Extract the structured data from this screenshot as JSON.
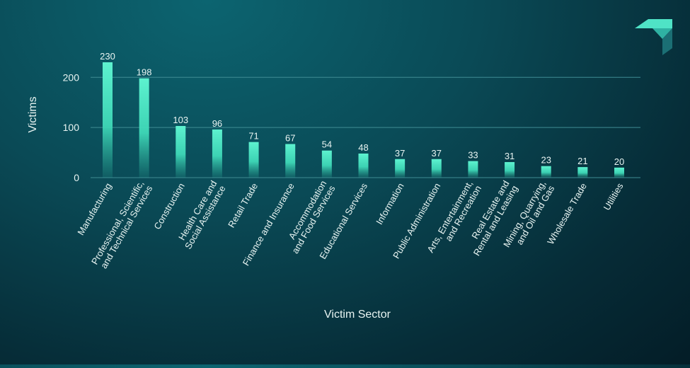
{
  "chart_data": {
    "type": "bar",
    "title": "",
    "xlabel": "Victim Sector",
    "ylabel": "Victims",
    "ylim": [
      0,
      230
    ],
    "yticks": [
      0,
      100,
      200
    ],
    "grid": true,
    "categories": [
      [
        "Manufacturing"
      ],
      [
        "Professional, Scientific,",
        "and Technical Services"
      ],
      [
        "Construction"
      ],
      [
        "Health Care and",
        "Social Assistance"
      ],
      [
        "Retail Trade"
      ],
      [
        "Finance and Insurance"
      ],
      [
        "Accommodation",
        "and Food Services"
      ],
      [
        "Educational Services"
      ],
      [
        "Information"
      ],
      [
        "Public Administration"
      ],
      [
        "Arts, Entertainment,",
        "and Recreation"
      ],
      [
        "Real Estate and",
        "Rental and Leasing"
      ],
      [
        "Mining, Quarrying,",
        "and Oil and Gas"
      ],
      [
        "Wholesale Trade"
      ],
      [
        "Utilities"
      ]
    ],
    "values": [
      230,
      198,
      103,
      96,
      71,
      67,
      54,
      48,
      37,
      37,
      33,
      31,
      23,
      21,
      20
    ],
    "colors": {
      "bar": "#3fe0bd",
      "grid": "#3f8c93",
      "text": "#e8f4f2"
    }
  },
  "logo": {
    "name": "brand-logo-icon",
    "colors": [
      "#4fe3c6",
      "#2fb2a3",
      "#1b6f74"
    ]
  }
}
